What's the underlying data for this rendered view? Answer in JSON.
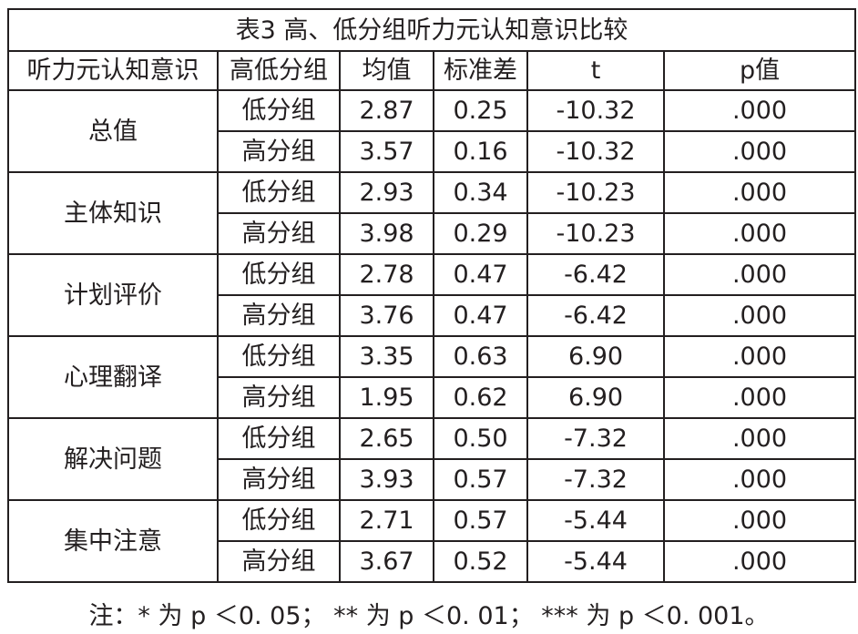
{
  "table": {
    "title": "表3 高、低分组听力元认知意识比较",
    "headers": [
      "听力元认知意识",
      "高低分组",
      "均值",
      "标准差",
      "t",
      "p值"
    ],
    "groups": [
      {
        "name": "总值",
        "rows": [
          [
            "低分组",
            "2.87",
            "0.25",
            "-10.32",
            ".000"
          ],
          [
            "高分组",
            "3.57",
            "0.16",
            "-10.32",
            ".000"
          ]
        ]
      },
      {
        "name": "主体知识",
        "rows": [
          [
            "低分组",
            "2.93",
            "0.34",
            "-10.23",
            ".000"
          ],
          [
            "高分组",
            "3.98",
            "0.29",
            "-10.23",
            ".000"
          ]
        ]
      },
      {
        "name": "计划评价",
        "rows": [
          [
            "低分组",
            "2.78",
            "0.47",
            "-6.42",
            ".000"
          ],
          [
            "高分组",
            "3.76",
            "0.47",
            "-6.42",
            ".000"
          ]
        ]
      },
      {
        "name": "心理翻译",
        "rows": [
          [
            "低分组",
            "3.35",
            "0.63",
            "6.90",
            ".000"
          ],
          [
            "高分组",
            "1.95",
            "0.62",
            "6.90",
            ".000"
          ]
        ]
      },
      {
        "name": "解决问题",
        "rows": [
          [
            "低分组",
            "2.65",
            "0.50",
            "-7.32",
            ".000"
          ],
          [
            "高分组",
            "3.93",
            "0.57",
            "-7.32",
            ".000"
          ]
        ]
      },
      {
        "name": "集中注意",
        "rows": [
          [
            "低分组",
            "2.71",
            "0.57",
            "-5.44",
            ".000"
          ],
          [
            "高分组",
            "3.67",
            "0.52",
            "-5.44",
            ".000"
          ]
        ]
      }
    ]
  },
  "note": "注：* 为 p ＜0. 05； ** 为 p ＜0. 01； *** 为 p ＜0. 001。"
}
